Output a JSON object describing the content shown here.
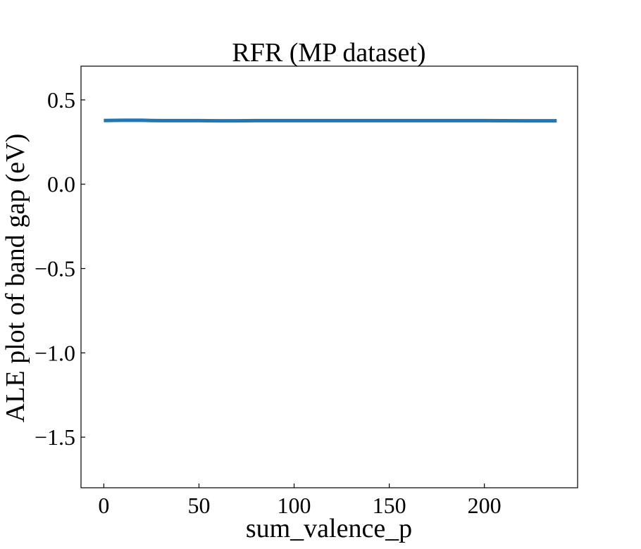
{
  "chart_data": {
    "type": "line",
    "title": "RFR (MP dataset)",
    "xlabel": "sum_valence_p",
    "ylabel": "ALE plot of band gap (eV)",
    "xlim": [
      -12,
      249
    ],
    "ylim": [
      -1.8,
      0.7
    ],
    "x_ticks": [
      0,
      50,
      100,
      150,
      200
    ],
    "x_tick_labels": [
      "0",
      "50",
      "100",
      "150",
      "200"
    ],
    "y_ticks": [
      0.5,
      0.0,
      -0.5,
      -1.0,
      -1.5
    ],
    "y_tick_labels": [
      "0.5",
      "0.0",
      "−0.5",
      "−1.0",
      "−1.5"
    ],
    "grid": false,
    "series_color": "#1f77b4",
    "series": [
      {
        "x": [
          0,
          10,
          20,
          25,
          30,
          40,
          50,
          60,
          70,
          80,
          100,
          120,
          140,
          160,
          180,
          200,
          220,
          238
        ],
        "values": [
          0.378,
          0.379,
          0.379,
          0.378,
          0.377,
          0.377,
          0.377,
          0.376,
          0.376,
          0.377,
          0.377,
          0.377,
          0.377,
          0.377,
          0.377,
          0.377,
          0.376,
          0.376
        ]
      }
    ]
  }
}
